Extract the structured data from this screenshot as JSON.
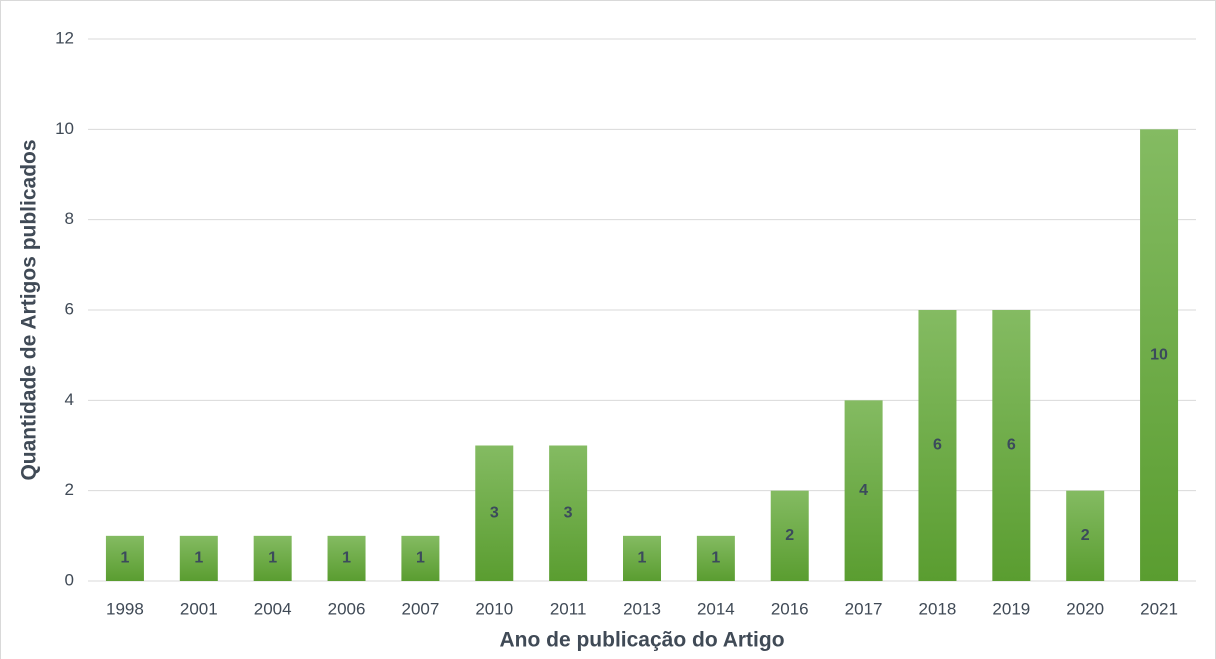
{
  "chart_data": {
    "type": "bar",
    "x_label": "Ano de publicação do Artigo",
    "y_label": "Quantidade de Artigos publicados",
    "categories": [
      "1998",
      "2001",
      "2004",
      "2006",
      "2007",
      "2010",
      "2011",
      "2013",
      "2014",
      "2016",
      "2017",
      "2018",
      "2019",
      "2020",
      "2021"
    ],
    "values": [
      1,
      1,
      1,
      1,
      1,
      3,
      3,
      1,
      1,
      2,
      4,
      6,
      6,
      2,
      10
    ],
    "color": "#66a83c",
    "ylim": [
      0,
      12
    ],
    "yticks": [
      0,
      2,
      4,
      6,
      8,
      10,
      12
    ],
    "grid": true
  }
}
